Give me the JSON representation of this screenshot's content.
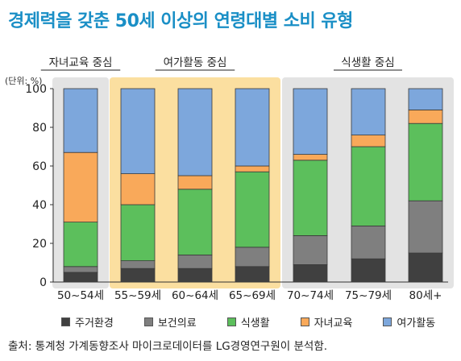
{
  "chart_data": {
    "type": "bar",
    "stacked": true,
    "title": "경제력을 갖춘 50세 이상의 연령대별 소비 유형",
    "ylabel": "(단위: %)",
    "ylim": [
      0,
      100
    ],
    "yticks": [
      0,
      20,
      40,
      60,
      80,
      100
    ],
    "grid": false,
    "legend_position": "bottom",
    "categories": [
      "50~54세",
      "55~59세",
      "60~64세",
      "65~69세",
      "70~74세",
      "75~79세",
      "80세+"
    ],
    "groups": [
      {
        "label": "자녀교육 중심",
        "color": "#e3e3e3",
        "start": 0,
        "end": 0
      },
      {
        "label": "여가활동 중심",
        "color": "#fbdfa0",
        "start": 1,
        "end": 3
      },
      {
        "label": "식생활 중심",
        "color": "#e3e3e3",
        "start": 4,
        "end": 6
      }
    ],
    "series": [
      {
        "name": "주거환경",
        "color": "#404040",
        "values": [
          5,
          7,
          7,
          8,
          9,
          12,
          15
        ]
      },
      {
        "name": "보건의료",
        "color": "#7f7f7f",
        "values": [
          3,
          4,
          7,
          10,
          15,
          17,
          27
        ]
      },
      {
        "name": "식생활",
        "color": "#5cbf5c",
        "values": [
          23,
          29,
          34,
          39,
          39,
          41,
          40
        ]
      },
      {
        "name": "자녀교육",
        "color": "#f9a95a",
        "values": [
          36,
          16,
          7,
          3,
          3,
          6,
          7
        ]
      },
      {
        "name": "여가활동",
        "color": "#7da7dc",
        "values": [
          33,
          44,
          45,
          40,
          34,
          24,
          11
        ]
      }
    ]
  },
  "source": "출처: 통계청 가계동향조사 마이크로데이터를 LG경영연구원이 분석함."
}
